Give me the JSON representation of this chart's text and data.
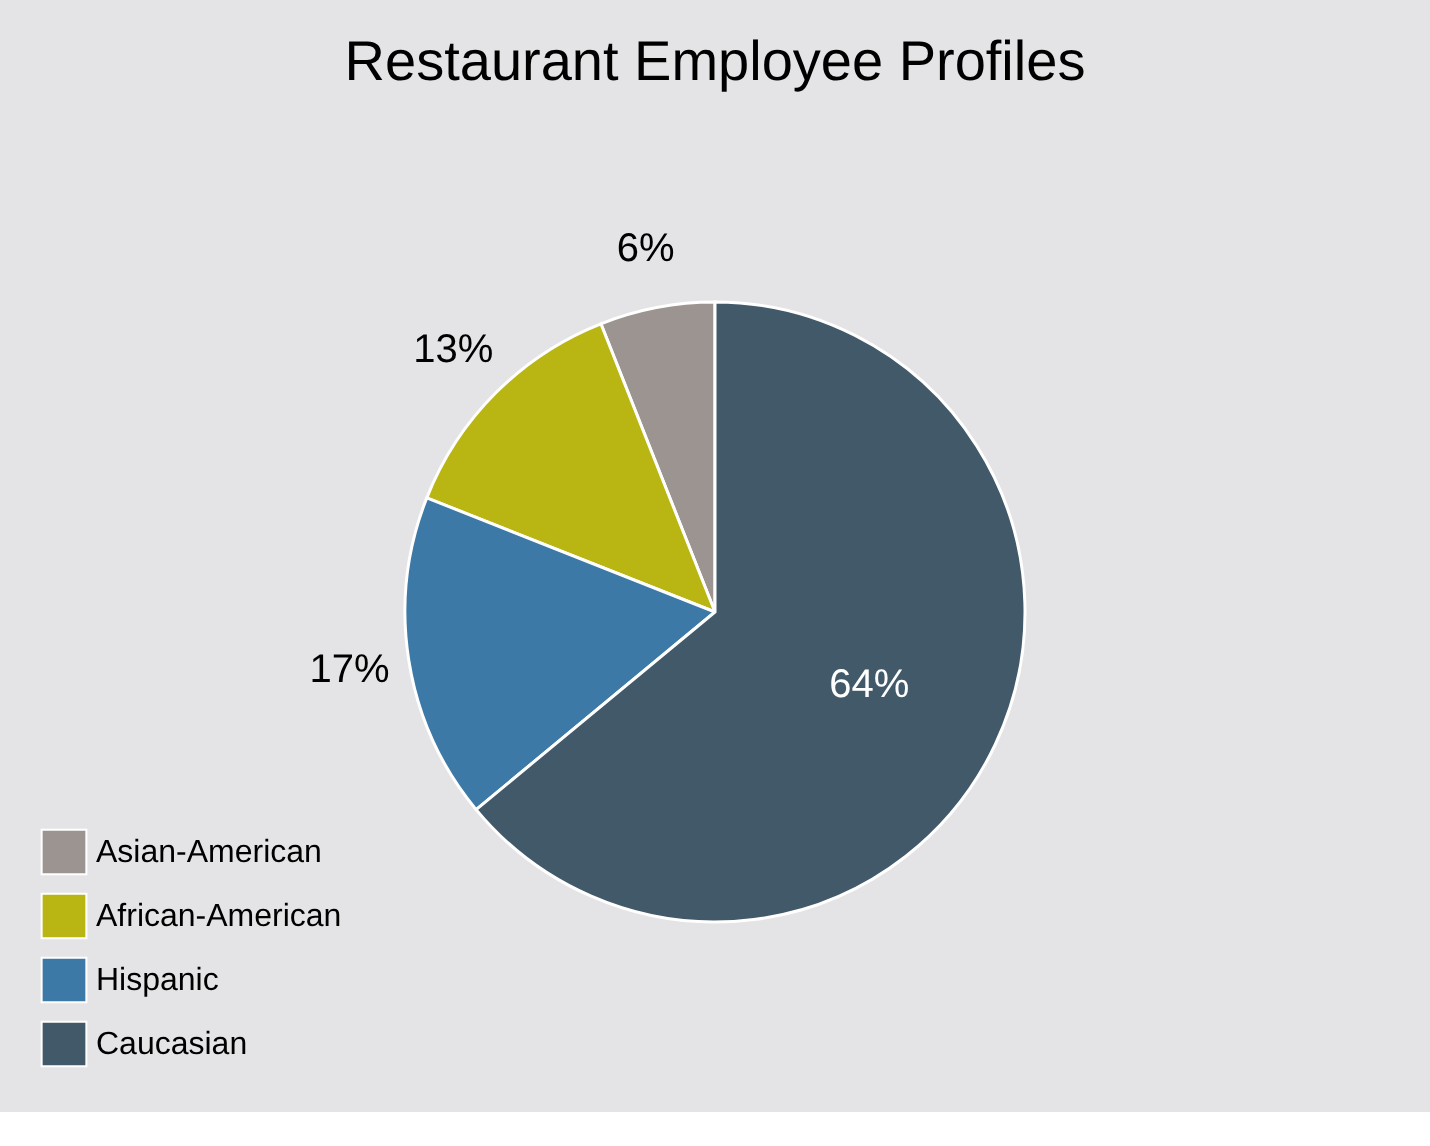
{
  "chart_data": {
    "type": "pie",
    "title": "Restaurant Employee Profiles",
    "categories": [
      "Asian-American",
      "African-American",
      "Hispanic",
      "Caucasian"
    ],
    "values": [
      6,
      13,
      17,
      64
    ],
    "colors": [
      "#9c9490",
      "#b9b512",
      "#3c79a6",
      "#42596a"
    ],
    "value_labels": [
      "6%",
      "13%",
      "17%",
      "64%"
    ],
    "legend": "bottom left"
  }
}
